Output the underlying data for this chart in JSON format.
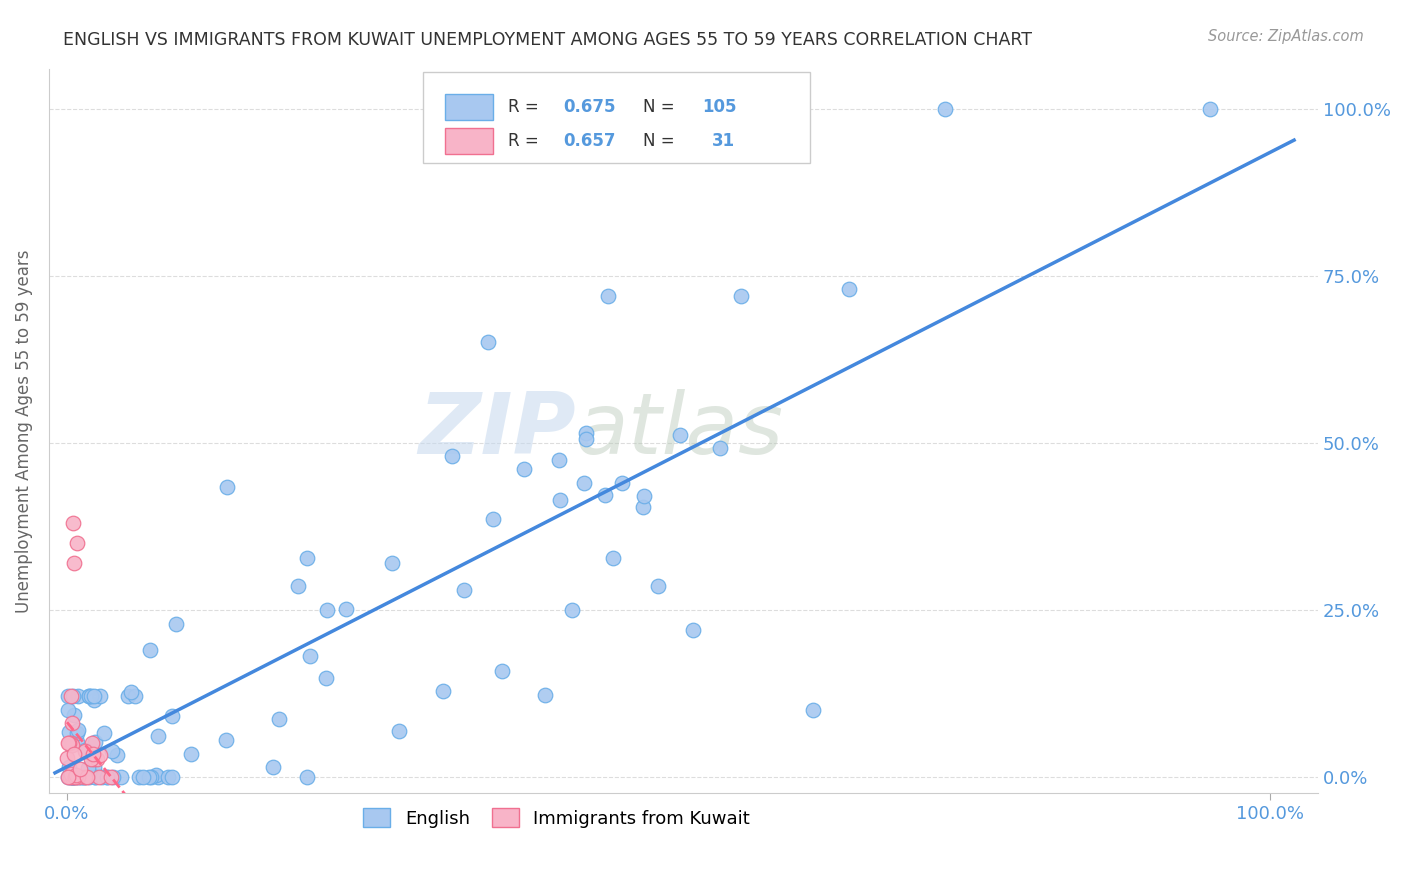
{
  "title": "ENGLISH VS IMMIGRANTS FROM KUWAIT UNEMPLOYMENT AMONG AGES 55 TO 59 YEARS CORRELATION CHART",
  "source": "Source: ZipAtlas.com",
  "ylabel": "Unemployment Among Ages 55 to 59 years",
  "watermark_zip": "ZIP",
  "watermark_atlas": "atlas",
  "legend_r_english": "0.675",
  "legend_n_english": "105",
  "legend_r_kuwait": "0.657",
  "legend_n_kuwait": "31",
  "english_color": "#a8c8f0",
  "english_edge_color": "#6aaee8",
  "kuwait_color": "#f8b4c8",
  "kuwait_edge_color": "#f07090",
  "regression_english_color": "#4488dd",
  "regression_kuwait_color": "#ff6688",
  "background_color": "#ffffff",
  "grid_color": "#dddddd",
  "title_color": "#333333",
  "axis_label_color": "#5599dd"
}
